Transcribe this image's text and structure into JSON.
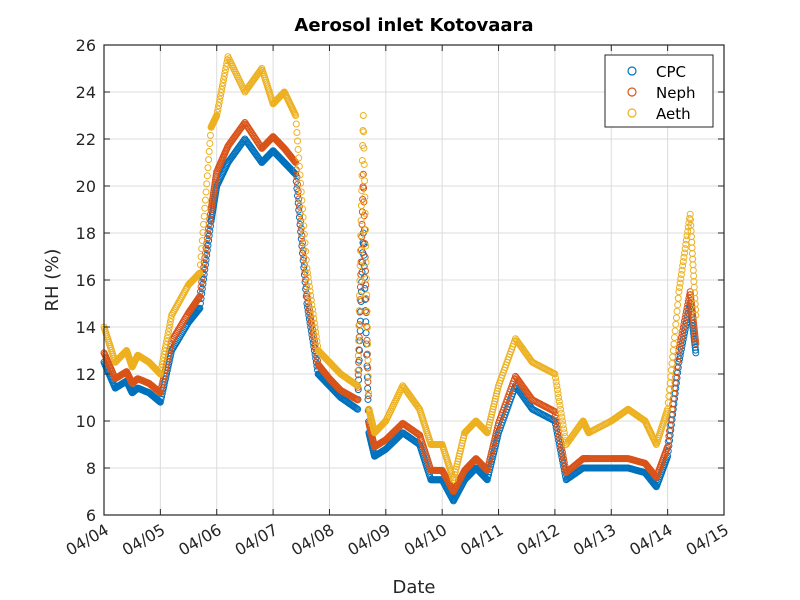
{
  "chart_data": {
    "type": "scatter",
    "title": "Aerosol inlet Kotovaara",
    "xlabel": "Date",
    "ylabel": "RH (%)",
    "xlim": [
      0,
      11
    ],
    "ylim": [
      6,
      26
    ],
    "grid": true,
    "legend_position": "top-right",
    "x_tick_labels": [
      "04/04",
      "04/05",
      "04/06",
      "04/07",
      "04/08",
      "04/09",
      "04/10",
      "04/11",
      "04/12",
      "04/13",
      "04/14",
      "04/15"
    ],
    "y_ticks": [
      6,
      8,
      10,
      12,
      14,
      16,
      18,
      20,
      22,
      24,
      26
    ],
    "x_day": [
      0.0,
      0.2,
      0.4,
      0.5,
      0.6,
      0.8,
      1.0,
      1.2,
      1.5,
      1.7,
      1.9,
      2.0,
      2.2,
      2.5,
      2.8,
      3.0,
      3.2,
      3.4,
      3.6,
      3.8,
      4.0,
      4.2,
      4.5,
      4.6,
      4.7,
      4.8,
      5.0,
      5.3,
      5.6,
      5.8,
      6.0,
      6.2,
      6.4,
      6.6,
      6.8,
      7.0,
      7.3,
      7.6,
      8.0,
      8.2,
      8.5,
      8.6,
      9.0,
      9.3,
      9.6,
      9.8,
      10.0,
      10.2,
      10.4,
      10.5
    ],
    "series": [
      {
        "name": "CPC",
        "color": "#0072BD",
        "values": [
          12.5,
          11.4,
          11.7,
          11.2,
          11.4,
          11.2,
          10.8,
          13.0,
          14.2,
          14.8,
          18.5,
          20.0,
          21.0,
          22.0,
          21.0,
          21.5,
          21.0,
          20.5,
          15.0,
          12.0,
          11.5,
          11.0,
          10.5,
          18.0,
          9.5,
          8.5,
          8.8,
          9.5,
          9.0,
          7.5,
          7.5,
          6.6,
          7.5,
          8.0,
          7.5,
          9.5,
          11.5,
          10.5,
          10.0,
          7.5,
          8.0,
          8.0,
          8.0,
          8.0,
          7.8,
          7.2,
          8.5,
          12.5,
          15.0,
          12.9
        ]
      },
      {
        "name": "Neph",
        "color": "#D95319",
        "values": [
          12.9,
          11.8,
          12.1,
          11.6,
          11.8,
          11.6,
          11.2,
          13.4,
          14.6,
          15.3,
          19.0,
          20.6,
          21.7,
          22.7,
          21.6,
          22.1,
          21.6,
          21.0,
          15.4,
          12.4,
          11.8,
          11.3,
          10.9,
          20.5,
          9.9,
          8.9,
          9.2,
          9.9,
          9.4,
          7.9,
          7.9,
          7.0,
          7.9,
          8.4,
          7.9,
          9.9,
          11.9,
          10.9,
          10.4,
          7.8,
          8.4,
          8.4,
          8.4,
          8.4,
          8.2,
          7.6,
          8.9,
          13.0,
          15.5,
          13.3
        ]
      },
      {
        "name": "Aeth",
        "color": "#EDB120",
        "values": [
          14.0,
          12.5,
          13.0,
          12.3,
          12.8,
          12.5,
          12.0,
          14.5,
          15.8,
          16.3,
          22.5,
          23.0,
          25.5,
          24.0,
          25.0,
          23.5,
          24.0,
          23.0,
          16.5,
          13.0,
          12.5,
          12.0,
          11.5,
          23.0,
          10.5,
          9.5,
          10.0,
          11.5,
          10.5,
          9.0,
          9.0,
          7.5,
          9.5,
          10.0,
          9.5,
          11.5,
          13.5,
          12.5,
          12.0,
          9.0,
          10.0,
          9.5,
          10.0,
          10.5,
          10.0,
          9.0,
          10.5,
          15.5,
          18.8,
          14.5
        ]
      }
    ]
  }
}
